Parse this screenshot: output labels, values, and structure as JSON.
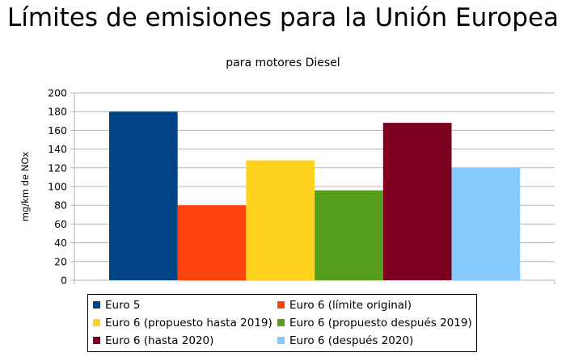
{
  "chart_data": {
    "type": "bar",
    "title": "Límites de emisiones para la Unión Europea",
    "subtitle": "para motores Diesel",
    "ylabel": "mg/km de NOx",
    "xlabel": "",
    "ylim": [
      0,
      200
    ],
    "yticks": [
      0,
      20,
      40,
      60,
      80,
      100,
      120,
      140,
      160,
      180,
      200
    ],
    "grid": true,
    "legend_position": "bottom",
    "series": [
      {
        "name": "Euro 5",
        "value": 180,
        "color": "#004586"
      },
      {
        "name": "Euro 6 (límite original)",
        "value": 80,
        "color": "#ff420e"
      },
      {
        "name": "Euro 6 (propuesto hasta 2019)",
        "value": 128,
        "color": "#ffd320"
      },
      {
        "name": "Euro 6 (propuesto después 2019)",
        "value": 96,
        "color": "#579d1c"
      },
      {
        "name": "Euro 6 (hasta 2020)",
        "value": 168,
        "color": "#7e0021"
      },
      {
        "name": "Euro 6 (después 2020)",
        "value": 120,
        "color": "#83caff"
      }
    ]
  }
}
